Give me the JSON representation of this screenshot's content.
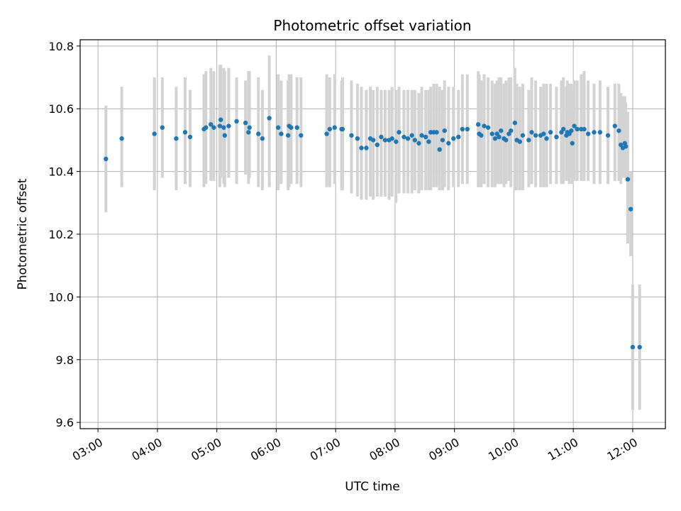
{
  "chart_data": {
    "type": "scatter",
    "title": "Photometric offset variation",
    "xlabel": "UTC time",
    "ylabel": "Photometric offset",
    "x_ticks": [
      "03:00",
      "04:00",
      "05:00",
      "06:00",
      "07:00",
      "08:00",
      "09:00",
      "10:00",
      "11:00",
      "12:00"
    ],
    "y_ticks": [
      9.6,
      9.8,
      10.0,
      10.2,
      10.4,
      10.6,
      10.8
    ],
    "xlim_hours": [
      2.7,
      12.55
    ],
    "ylim": [
      9.58,
      10.82
    ],
    "grid": true,
    "colors": {
      "marker": "#1f77b4",
      "errorbar": "#d3d3d3",
      "grid": "#b0b0b0"
    },
    "series": [
      {
        "x": [
          "03:08",
          "03:24",
          "03:57",
          "04:05",
          "04:19",
          "04:28",
          "04:33",
          "04:47",
          "04:49",
          "04:54",
          "04:57",
          "05:03",
          "05:04",
          "05:07",
          "05:08",
          "05:12",
          "05:20",
          "05:29",
          "05:32",
          "05:33",
          "05:42",
          "05:46",
          "05:53",
          "06:02",
          "06:05",
          "06:12",
          "06:13",
          "06:15",
          "06:21",
          "06:25",
          "06:51",
          "06:54",
          "06:59",
          "07:06",
          "07:07",
          "07:16",
          "07:22",
          "07:26",
          "07:31",
          "07:35",
          "07:38",
          "07:42",
          "07:46",
          "07:50",
          "07:54",
          "07:57",
          "08:01",
          "08:04",
          "08:09",
          "08:13",
          "08:17",
          "08:20",
          "08:24",
          "08:27",
          "08:31",
          "08:34",
          "08:36",
          "08:39",
          "08:42",
          "08:45",
          "08:48",
          "08:50",
          "08:54",
          "08:59",
          "09:04",
          "09:08",
          "09:13",
          "09:24",
          "09:25",
          "09:27",
          "09:30",
          "09:34",
          "09:38",
          "09:41",
          "09:43",
          "09:45",
          "09:47",
          "09:50",
          "09:52",
          "09:55",
          "09:57",
          "10:01",
          "10:03",
          "10:06",
          "10:09",
          "10:15",
          "10:18",
          "10:22",
          "10:27",
          "10:30",
          "10:33",
          "10:37",
          "10:43",
          "10:48",
          "10:50",
          "10:53",
          "10:54",
          "10:56",
          "10:58",
          "10:59",
          "11:01",
          "11:04",
          "11:08",
          "11:11",
          "11:15",
          "11:21",
          "11:27",
          "11:35",
          "11:42",
          "11:46",
          "11:48",
          "11:50",
          "11:52",
          "11:53",
          "11:55",
          "11:58",
          "12:00",
          "12:07"
        ],
        "y": [
          10.44,
          10.505,
          10.52,
          10.54,
          10.505,
          10.525,
          10.51,
          10.535,
          10.54,
          10.55,
          10.54,
          10.545,
          10.565,
          10.54,
          10.515,
          10.545,
          10.56,
          10.555,
          10.525,
          10.54,
          10.52,
          10.505,
          10.57,
          10.54,
          10.52,
          10.515,
          10.545,
          10.54,
          10.54,
          10.515,
          10.52,
          10.535,
          10.54,
          10.535,
          10.535,
          10.515,
          10.505,
          10.475,
          10.475,
          10.505,
          10.5,
          10.485,
          10.51,
          10.5,
          10.5,
          10.505,
          10.495,
          10.525,
          10.51,
          10.505,
          10.515,
          10.5,
          10.49,
          10.515,
          10.51,
          10.495,
          10.525,
          10.525,
          10.525,
          10.47,
          10.5,
          10.53,
          10.49,
          10.505,
          10.51,
          10.535,
          10.535,
          10.55,
          10.52,
          10.515,
          10.545,
          10.54,
          10.52,
          10.505,
          10.52,
          10.51,
          10.53,
          10.505,
          10.5,
          10.52,
          10.53,
          10.555,
          10.5,
          10.495,
          10.515,
          10.5,
          10.525,
          10.515,
          10.515,
          10.52,
          10.505,
          10.525,
          10.51,
          10.525,
          10.535,
          10.515,
          10.525,
          10.52,
          10.53,
          10.49,
          10.545,
          10.535,
          10.535,
          10.535,
          10.52,
          10.525,
          10.525,
          10.515,
          10.545,
          10.53,
          10.485,
          10.475,
          10.49,
          10.48,
          10.375,
          10.28,
          9.84,
          9.84
        ],
        "err_low": [
          10.27,
          10.35,
          10.34,
          10.38,
          10.34,
          10.36,
          10.35,
          10.35,
          10.36,
          10.37,
          10.37,
          10.35,
          10.38,
          10.36,
          10.35,
          10.38,
          10.36,
          10.39,
          10.36,
          10.38,
          10.35,
          10.34,
          10.35,
          10.34,
          10.36,
          10.34,
          10.35,
          10.36,
          10.36,
          10.35,
          10.35,
          10.35,
          10.36,
          10.34,
          10.34,
          10.33,
          10.32,
          10.31,
          10.31,
          10.32,
          10.31,
          10.32,
          10.32,
          10.32,
          10.31,
          10.32,
          10.3,
          10.33,
          10.33,
          10.33,
          10.33,
          10.34,
          10.33,
          10.34,
          10.34,
          10.34,
          10.34,
          10.35,
          10.35,
          10.34,
          10.34,
          10.35,
          10.34,
          10.35,
          10.35,
          10.36,
          10.36,
          10.35,
          10.35,
          10.35,
          10.36,
          10.35,
          10.35,
          10.35,
          10.36,
          10.36,
          10.36,
          10.35,
          10.36,
          10.37,
          10.35,
          10.34,
          10.34,
          10.34,
          10.34,
          10.35,
          10.36,
          10.35,
          10.35,
          10.35,
          10.35,
          10.36,
          10.36,
          10.36,
          10.36,
          10.37,
          10.37,
          10.36,
          10.38,
          10.36,
          10.37,
          10.37,
          10.37,
          10.37,
          10.37,
          10.36,
          10.36,
          10.36,
          10.37,
          10.37,
          10.36,
          10.38,
          10.38,
          10.38,
          10.17,
          10.13,
          9.64,
          9.64
        ],
        "err_high": [
          10.61,
          10.67,
          10.7,
          10.7,
          10.67,
          10.7,
          10.66,
          10.71,
          10.72,
          10.73,
          10.72,
          10.74,
          10.74,
          10.73,
          10.72,
          10.73,
          10.7,
          10.69,
          10.72,
          10.72,
          10.7,
          10.66,
          10.77,
          10.71,
          10.69,
          10.69,
          10.71,
          10.71,
          10.7,
          10.7,
          10.71,
          10.7,
          10.71,
          10.69,
          10.7,
          10.69,
          10.68,
          10.67,
          10.66,
          10.67,
          10.66,
          10.67,
          10.66,
          10.66,
          10.66,
          10.67,
          10.66,
          10.67,
          10.66,
          10.66,
          10.66,
          10.66,
          10.65,
          10.67,
          10.66,
          10.66,
          10.67,
          10.68,
          10.68,
          10.67,
          10.66,
          10.69,
          10.67,
          10.67,
          10.66,
          10.71,
          10.71,
          10.72,
          10.71,
          10.69,
          10.71,
          10.7,
          10.69,
          10.68,
          10.69,
          10.7,
          10.7,
          10.68,
          10.69,
          10.7,
          10.7,
          10.73,
          10.68,
          10.67,
          10.68,
          10.66,
          10.7,
          10.69,
          10.67,
          10.68,
          10.68,
          10.68,
          10.67,
          10.69,
          10.7,
          10.67,
          10.69,
          10.68,
          10.68,
          10.66,
          10.69,
          10.69,
          10.71,
          10.72,
          10.69,
          10.68,
          10.69,
          10.67,
          10.68,
          10.68,
          10.65,
          10.64,
          10.64,
          10.62,
          10.59,
          10.4,
          10.04,
          10.04
        ]
      }
    ]
  }
}
